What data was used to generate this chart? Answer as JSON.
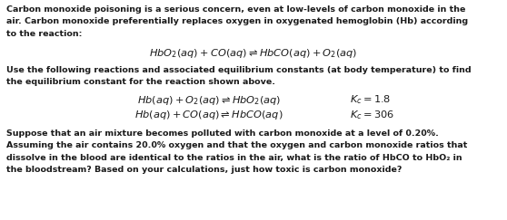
{
  "background_color": "#ffffff",
  "figsize": [
    5.58,
    2.43
  ],
  "dpi": 100,
  "paragraph1_line1": "Carbon monoxide poisoning is a serious concern, even at low-levels of carbon monoxide in the",
  "paragraph1_line2": "air. Carbon monoxide preferentially replaces oxygen in oxygenated hemoglobin (Hb) according",
  "paragraph1_line3": "to the reaction:",
  "equation1": "$HbO_2(aq) + CO(aq) \\rightleftharpoons HbCO(aq) + O_2(aq)$",
  "paragraph2_line1": "Use the following reactions and associated equilibrium constants (at body temperature) to find",
  "paragraph2_line2": "the equilibrium constant for the reaction shown above.",
  "eq2_left": "$Hb(aq) + O_2(aq) \\rightleftharpoons HbO_2(aq)$",
  "eq2_right": "$K_c = 1.8$",
  "eq3_left": "$Hb(aq) + CO(aq) \\rightleftharpoons HbCO(aq)$",
  "eq3_right": "$K_c = 306$",
  "paragraph3_line1": "Suppose that an air mixture becomes polluted with carbon monoxide at a level of 0.20%.",
  "paragraph3_line2": "Assuming the air contains 20.0% oxygen and that the oxygen and carbon monoxide ratios that",
  "paragraph3_line3": "dissolve in the blood are identical to the ratios in the air, what is the ratio of HbCO to HbO₂ in",
  "paragraph3_line4": "the bloodstream? Based on your calculations, just how toxic is carbon monoxide?",
  "font_size_body": 6.8,
  "font_size_eq": 8.2,
  "text_color": "#1a1a1a"
}
